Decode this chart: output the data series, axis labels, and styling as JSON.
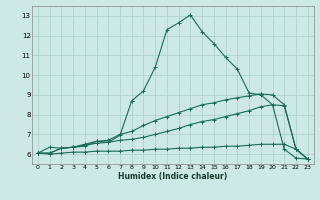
{
  "xlabel": "Humidex (Indice chaleur)",
  "xlim": [
    -0.5,
    23.5
  ],
  "ylim": [
    5.5,
    13.5
  ],
  "xticks": [
    0,
    1,
    2,
    3,
    4,
    5,
    6,
    7,
    8,
    9,
    10,
    11,
    12,
    13,
    14,
    15,
    16,
    17,
    18,
    19,
    20,
    21,
    22,
    23
  ],
  "yticks": [
    6,
    7,
    8,
    9,
    10,
    11,
    12,
    13
  ],
  "bg_color": "#cce9e5",
  "grid_color": "#aacfc9",
  "line_color": "#1a6b5a",
  "line1_x": [
    0,
    1,
    2,
    3,
    4,
    5,
    6,
    7,
    8,
    9,
    10,
    11,
    12,
    13,
    14,
    15,
    16,
    17,
    18,
    19,
    20,
    21,
    22,
    23
  ],
  "line1_y": [
    6.05,
    6.35,
    6.3,
    6.35,
    6.4,
    6.65,
    6.6,
    6.95,
    8.7,
    9.2,
    10.4,
    12.3,
    12.65,
    13.05,
    12.2,
    11.6,
    10.9,
    10.3,
    9.1,
    9.0,
    8.5,
    6.25,
    5.8,
    5.75
  ],
  "line2_x": [
    0,
    1,
    2,
    3,
    4,
    5,
    6,
    7,
    8,
    9,
    10,
    11,
    12,
    13,
    14,
    15,
    16,
    17,
    18,
    19,
    20,
    21,
    22,
    23
  ],
  "line2_y": [
    6.05,
    6.05,
    6.3,
    6.35,
    6.5,
    6.65,
    6.7,
    7.0,
    7.15,
    7.45,
    7.7,
    7.9,
    8.1,
    8.3,
    8.5,
    8.6,
    8.75,
    8.85,
    8.95,
    9.05,
    9.0,
    8.5,
    6.25,
    5.75
  ],
  "line3_x": [
    0,
    1,
    2,
    3,
    4,
    5,
    6,
    7,
    8,
    9,
    10,
    11,
    12,
    13,
    14,
    15,
    16,
    17,
    18,
    19,
    20,
    21,
    22,
    23
  ],
  "line3_y": [
    6.05,
    6.05,
    6.3,
    6.35,
    6.45,
    6.55,
    6.6,
    6.7,
    6.75,
    6.85,
    7.0,
    7.15,
    7.3,
    7.5,
    7.65,
    7.75,
    7.9,
    8.05,
    8.2,
    8.4,
    8.5,
    8.45,
    6.25,
    5.75
  ],
  "line4_x": [
    0,
    1,
    2,
    3,
    4,
    5,
    6,
    7,
    8,
    9,
    10,
    11,
    12,
    13,
    14,
    15,
    16,
    17,
    18,
    19,
    20,
    21,
    22,
    23
  ],
  "line4_y": [
    6.05,
    6.0,
    6.05,
    6.1,
    6.1,
    6.15,
    6.15,
    6.15,
    6.2,
    6.2,
    6.25,
    6.25,
    6.3,
    6.3,
    6.35,
    6.35,
    6.4,
    6.4,
    6.45,
    6.5,
    6.5,
    6.5,
    6.25,
    5.75
  ]
}
